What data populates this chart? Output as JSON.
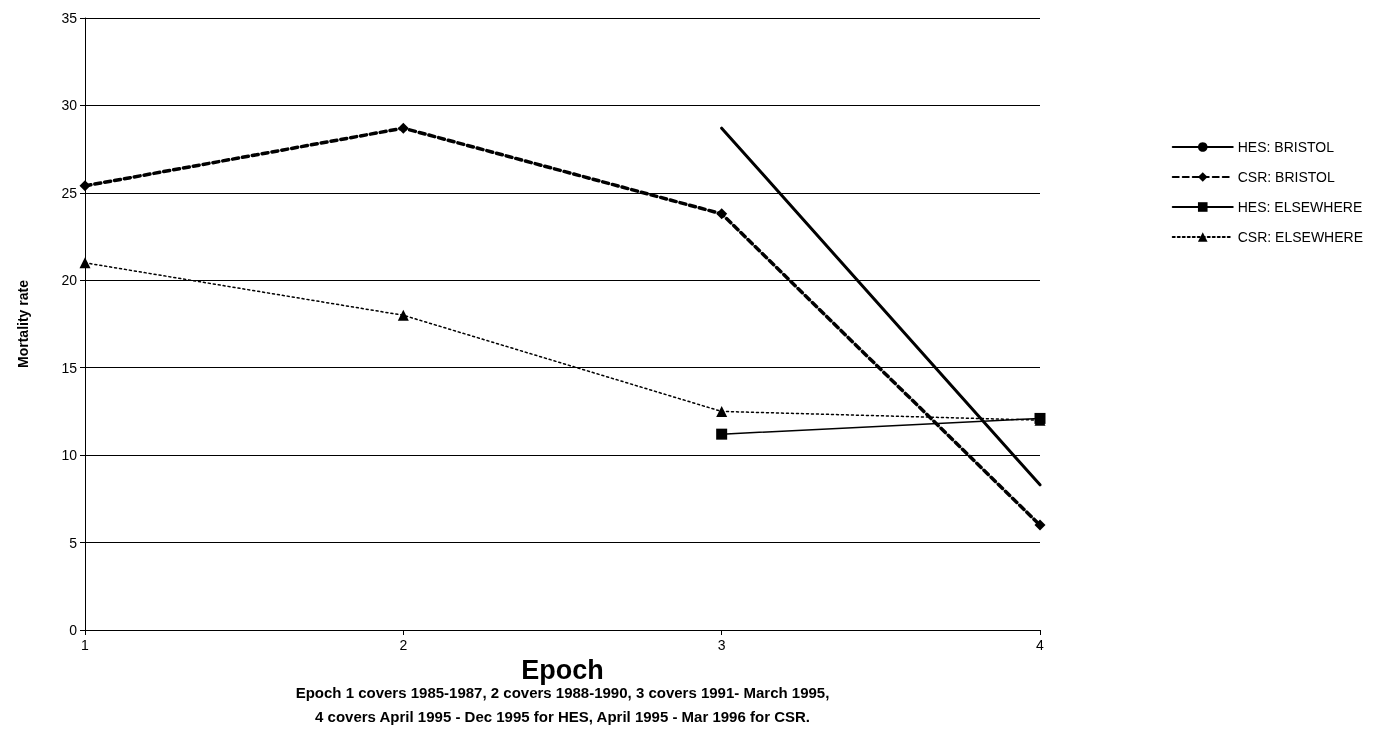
{
  "chart_data": {
    "type": "line",
    "xlabel": "Epoch",
    "ylabel": "Mortality rate",
    "categories": [
      "1",
      "2",
      "3",
      "4"
    ],
    "series": [
      {
        "name": "HES: BRISTOL",
        "color": "#000000",
        "values": [
          null,
          null,
          28.7,
          8.3
        ],
        "marker": "none",
        "line_style": "solid"
      },
      {
        "name": "CSR: BRISTOL",
        "color": "#000000",
        "values": [
          25.4,
          28.7,
          23.8,
          6.0
        ],
        "marker": "diamond",
        "line_style": "dashed"
      },
      {
        "name": "HES: ELSEWHERE",
        "color": "#000000",
        "values": [
          null,
          null,
          11.2,
          12.1
        ],
        "marker": "square",
        "line_style": "solid"
      },
      {
        "name": "CSR: ELSEWHERE",
        "color": "#000000",
        "values": [
          21.0,
          18.0,
          12.5,
          12.0
        ],
        "marker": "triangle",
        "line_style": "dotted"
      }
    ],
    "ylim": [
      0,
      35
    ],
    "yticks": [
      0,
      5,
      10,
      15,
      20,
      25,
      30,
      35
    ],
    "grid": "y",
    "legend": "right",
    "annotations": [
      "Epoch 1 covers 1985-1987, 2 covers 1988-1990, 3 covers 1991- March 1995,\n4 covers April 1995 - Dec 1995 for HES, April 1995 - Mar 1996 for CSR."
    ]
  }
}
